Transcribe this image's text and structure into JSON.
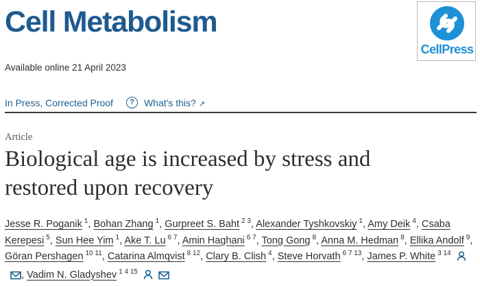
{
  "header": {
    "journal_title": "Cell Metabolism",
    "logo_text": "CellPress",
    "logo_color": "#1e90d6"
  },
  "availability": "Available online 21 April 2023",
  "status": {
    "label": "In Press, Corrected Proof",
    "help_glyph": "?",
    "whats_this": "What's this?"
  },
  "article": {
    "type": "Article",
    "title_line1": "Biological age is increased by stress and",
    "title_line2": "restored upon recovery"
  },
  "authors": [
    {
      "name": "Jesse R. Poganik",
      "aff": "1"
    },
    {
      "name": "Bohan Zhang",
      "aff": "1"
    },
    {
      "name": "Gurpreet S. Baht",
      "aff": "2 3"
    },
    {
      "name": "Alexander Tyshkovskiy",
      "aff": "1"
    },
    {
      "name": "Amy Deik",
      "aff": "4"
    },
    {
      "name": "Csaba Kerepesi",
      "aff": "5"
    },
    {
      "name": "Sun Hee Yim",
      "aff": "1"
    },
    {
      "name": "Ake T. Lu",
      "aff": "6 7"
    },
    {
      "name": "Amin Haghani",
      "aff": "6 7"
    },
    {
      "name": "Tong Gong",
      "aff": "8"
    },
    {
      "name": "Anna M. Hedman",
      "aff": "8"
    },
    {
      "name": "Ellika Andolf",
      "aff": "9"
    },
    {
      "name": "Göran Pershagen",
      "aff": "10 11"
    },
    {
      "name": "Catarina Almqvist",
      "aff": "8 12"
    },
    {
      "name": "Clary B. Clish",
      "aff": "4"
    },
    {
      "name": "Steve Horvath",
      "aff": "6 7 13"
    },
    {
      "name": "James P. White",
      "aff": "3 14",
      "icons": [
        "person-icon",
        "envelope-icon"
      ]
    },
    {
      "name": "Vadim N. Gladyshev",
      "aff": "1 4 15",
      "icons": [
        "person-icon",
        "envelope-icon"
      ]
    }
  ],
  "colors": {
    "journal_blue": "#1d5a8f",
    "link_blue": "#1a5f91",
    "text": "#2e2e2e"
  }
}
